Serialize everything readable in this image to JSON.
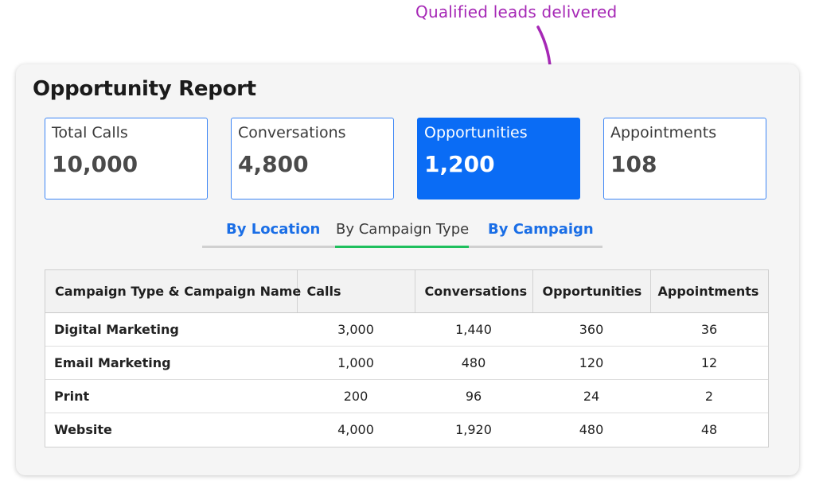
{
  "annotation": {
    "text": "Qualified leads delivered",
    "color": "#a628b6"
  },
  "report": {
    "title": "Opportunity Report",
    "cards": [
      {
        "label": "Total Calls",
        "value": "10,000",
        "active": false
      },
      {
        "label": "Conversations",
        "value": "4,800",
        "active": false
      },
      {
        "label": "Opportunities",
        "value": "1,200",
        "active": true
      },
      {
        "label": "Appointments",
        "value": "108",
        "active": false
      }
    ],
    "tabs": [
      {
        "label": "By Location",
        "selected": false
      },
      {
        "label": "By Campaign Type",
        "selected": true
      },
      {
        "label": "By Campaign",
        "selected": false
      }
    ],
    "table": {
      "headers": [
        "Campaign Type & Campaign Name",
        "Calls",
        "Conversations",
        "Opportunities",
        "Appointments"
      ],
      "rows": [
        [
          "Digital Marketing",
          "3,000",
          "1,440",
          "360",
          "36"
        ],
        [
          "Email Marketing",
          "1,000",
          "480",
          "120",
          "12"
        ],
        [
          "Print",
          "200",
          "96",
          "24",
          "2"
        ],
        [
          "Website",
          "4,000",
          "1,920",
          "480",
          "48"
        ]
      ]
    }
  },
  "colors": {
    "accent": "#0a6cf5",
    "tab_link": "#1a6ee6",
    "tab_underline": "#1fbf5d"
  }
}
